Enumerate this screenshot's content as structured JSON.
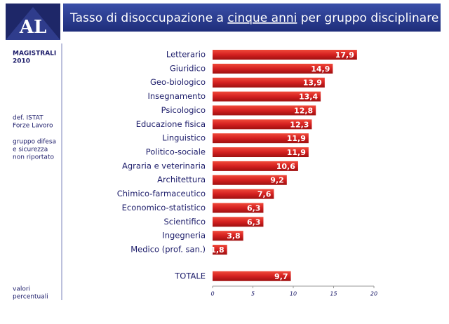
{
  "logo": "AL",
  "sidebar": {
    "cohort": [
      "MAGISTRALI",
      "2010"
    ],
    "source": [
      "def. ISTAT",
      "Forze Lavoro"
    ],
    "note": [
      "gruppo difesa",
      "e sicurezza",
      "non riportato"
    ],
    "units": [
      "valori",
      "percentuali"
    ]
  },
  "chart_data": {
    "type": "bar",
    "orientation": "horizontal",
    "title_parts": [
      "Tasso di disoccupazione a ",
      "cinque anni",
      " per gruppo disciplinare"
    ],
    "categories": [
      "Letterario",
      "Giuridico",
      "Geo-biologico",
      "Insegnamento",
      "Psicologico",
      "Educazione fisica",
      "Linguistico",
      "Politico-sociale",
      "Agraria e veterinaria",
      "Architettura",
      "Chimico-farmaceutico",
      "Economico-statistico",
      "Scientifico",
      "Ingegneria",
      "Medico (prof. san.)"
    ],
    "values": [
      17.9,
      14.9,
      13.9,
      13.4,
      12.8,
      12.3,
      11.9,
      11.9,
      10.6,
      9.2,
      7.6,
      6.3,
      6.3,
      3.8,
      1.8
    ],
    "value_labels": [
      "17,9",
      "14,9",
      "13,9",
      "13,4",
      "12,8",
      "12,3",
      "11,9",
      "11,9",
      "10,6",
      "9,2",
      "7,6",
      "6,3",
      "6,3",
      "3,8",
      "1,8"
    ],
    "total": {
      "label": "TOTALE",
      "value": 9.7,
      "value_label": "9,7"
    },
    "color": "#d42020",
    "xlim": [
      0,
      20
    ],
    "xticks": [
      0,
      5,
      10,
      15,
      20
    ]
  }
}
